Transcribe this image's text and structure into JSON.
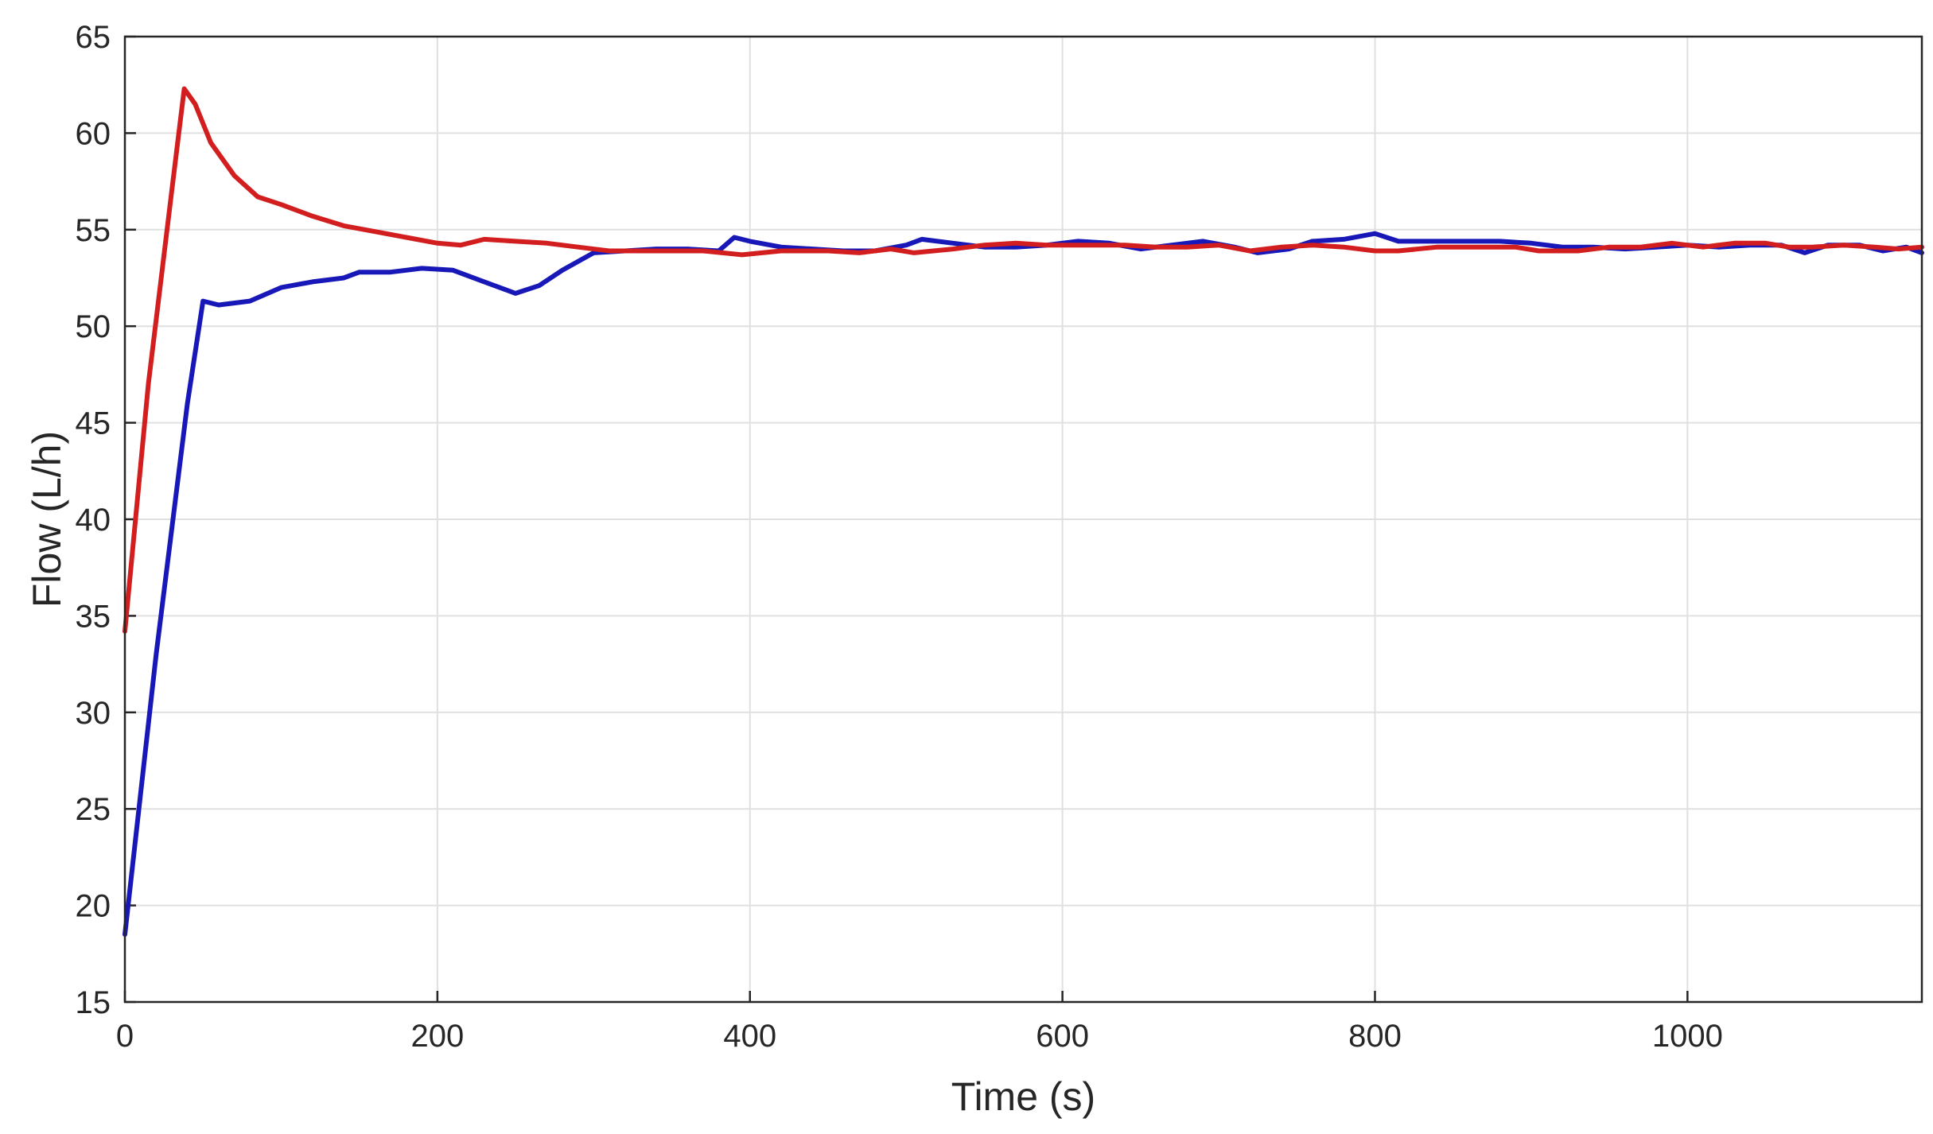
{
  "chart_data": {
    "type": "line",
    "title": "",
    "xlabel": "Time (s)",
    "ylabel": "Flow (L/h)",
    "xlim": [
      0,
      1150
    ],
    "ylim": [
      15,
      65
    ],
    "xticks": [
      0,
      200,
      400,
      600,
      800,
      1000
    ],
    "yticks": [
      15,
      20,
      25,
      30,
      35,
      40,
      45,
      50,
      55,
      60,
      65
    ],
    "grid": true,
    "legend": "none",
    "series": [
      {
        "color": "#1818b8",
        "points": [
          [
            0,
            18.5
          ],
          [
            20,
            33
          ],
          [
            40,
            46
          ],
          [
            50,
            51.3
          ],
          [
            60,
            51.1
          ],
          [
            80,
            51.3
          ],
          [
            100,
            52
          ],
          [
            120,
            52.3
          ],
          [
            140,
            52.5
          ],
          [
            150,
            52.8
          ],
          [
            170,
            52.8
          ],
          [
            190,
            53
          ],
          [
            210,
            52.9
          ],
          [
            230,
            52.3
          ],
          [
            250,
            51.7
          ],
          [
            265,
            52.1
          ],
          [
            280,
            52.9
          ],
          [
            300,
            53.8
          ],
          [
            320,
            53.9
          ],
          [
            340,
            54
          ],
          [
            360,
            54
          ],
          [
            380,
            53.9
          ],
          [
            390,
            54.6
          ],
          [
            400,
            54.4
          ],
          [
            420,
            54.1
          ],
          [
            440,
            54
          ],
          [
            460,
            53.9
          ],
          [
            480,
            53.9
          ],
          [
            500,
            54.2
          ],
          [
            510,
            54.5
          ],
          [
            530,
            54.3
          ],
          [
            550,
            54.1
          ],
          [
            570,
            54.1
          ],
          [
            590,
            54.2
          ],
          [
            610,
            54.4
          ],
          [
            630,
            54.3
          ],
          [
            650,
            54
          ],
          [
            670,
            54.2
          ],
          [
            690,
            54.4
          ],
          [
            710,
            54.1
          ],
          [
            725,
            53.8
          ],
          [
            745,
            54
          ],
          [
            760,
            54.4
          ],
          [
            780,
            54.5
          ],
          [
            800,
            54.8
          ],
          [
            815,
            54.4
          ],
          [
            840,
            54.4
          ],
          [
            860,
            54.4
          ],
          [
            880,
            54.4
          ],
          [
            900,
            54.3
          ],
          [
            920,
            54.1
          ],
          [
            940,
            54.1
          ],
          [
            960,
            54
          ],
          [
            980,
            54.1
          ],
          [
            1000,
            54.2
          ],
          [
            1020,
            54.1
          ],
          [
            1040,
            54.2
          ],
          [
            1060,
            54.2
          ],
          [
            1075,
            53.8
          ],
          [
            1090,
            54.2
          ],
          [
            1110,
            54.2
          ],
          [
            1125,
            53.9
          ],
          [
            1140,
            54.1
          ],
          [
            1150,
            53.8
          ]
        ]
      },
      {
        "color": "#d21e1e",
        "points": [
          [
            0,
            34.2
          ],
          [
            15,
            47
          ],
          [
            30,
            57
          ],
          [
            38,
            62.3
          ],
          [
            45,
            61.5
          ],
          [
            55,
            59.5
          ],
          [
            70,
            57.8
          ],
          [
            85,
            56.7
          ],
          [
            100,
            56.3
          ],
          [
            120,
            55.7
          ],
          [
            140,
            55.2
          ],
          [
            160,
            54.9
          ],
          [
            180,
            54.6
          ],
          [
            200,
            54.3
          ],
          [
            215,
            54.2
          ],
          [
            230,
            54.5
          ],
          [
            250,
            54.4
          ],
          [
            270,
            54.3
          ],
          [
            290,
            54.1
          ],
          [
            310,
            53.9
          ],
          [
            330,
            53.9
          ],
          [
            350,
            53.9
          ],
          [
            370,
            53.9
          ],
          [
            395,
            53.7
          ],
          [
            420,
            53.9
          ],
          [
            450,
            53.9
          ],
          [
            470,
            53.8
          ],
          [
            490,
            54
          ],
          [
            505,
            53.8
          ],
          [
            530,
            54
          ],
          [
            550,
            54.2
          ],
          [
            570,
            54.3
          ],
          [
            590,
            54.2
          ],
          [
            610,
            54.2
          ],
          [
            640,
            54.2
          ],
          [
            660,
            54.1
          ],
          [
            680,
            54.1
          ],
          [
            700,
            54.2
          ],
          [
            720,
            53.9
          ],
          [
            740,
            54.1
          ],
          [
            760,
            54.2
          ],
          [
            780,
            54.1
          ],
          [
            800,
            53.9
          ],
          [
            815,
            53.9
          ],
          [
            840,
            54.1
          ],
          [
            870,
            54.1
          ],
          [
            890,
            54.1
          ],
          [
            905,
            53.9
          ],
          [
            930,
            53.9
          ],
          [
            950,
            54.1
          ],
          [
            970,
            54.1
          ],
          [
            990,
            54.3
          ],
          [
            1010,
            54.1
          ],
          [
            1030,
            54.3
          ],
          [
            1050,
            54.3
          ],
          [
            1065,
            54.1
          ],
          [
            1080,
            54.1
          ],
          [
            1100,
            54.2
          ],
          [
            1120,
            54.1
          ],
          [
            1135,
            54
          ],
          [
            1150,
            54.1
          ]
        ]
      }
    ]
  }
}
